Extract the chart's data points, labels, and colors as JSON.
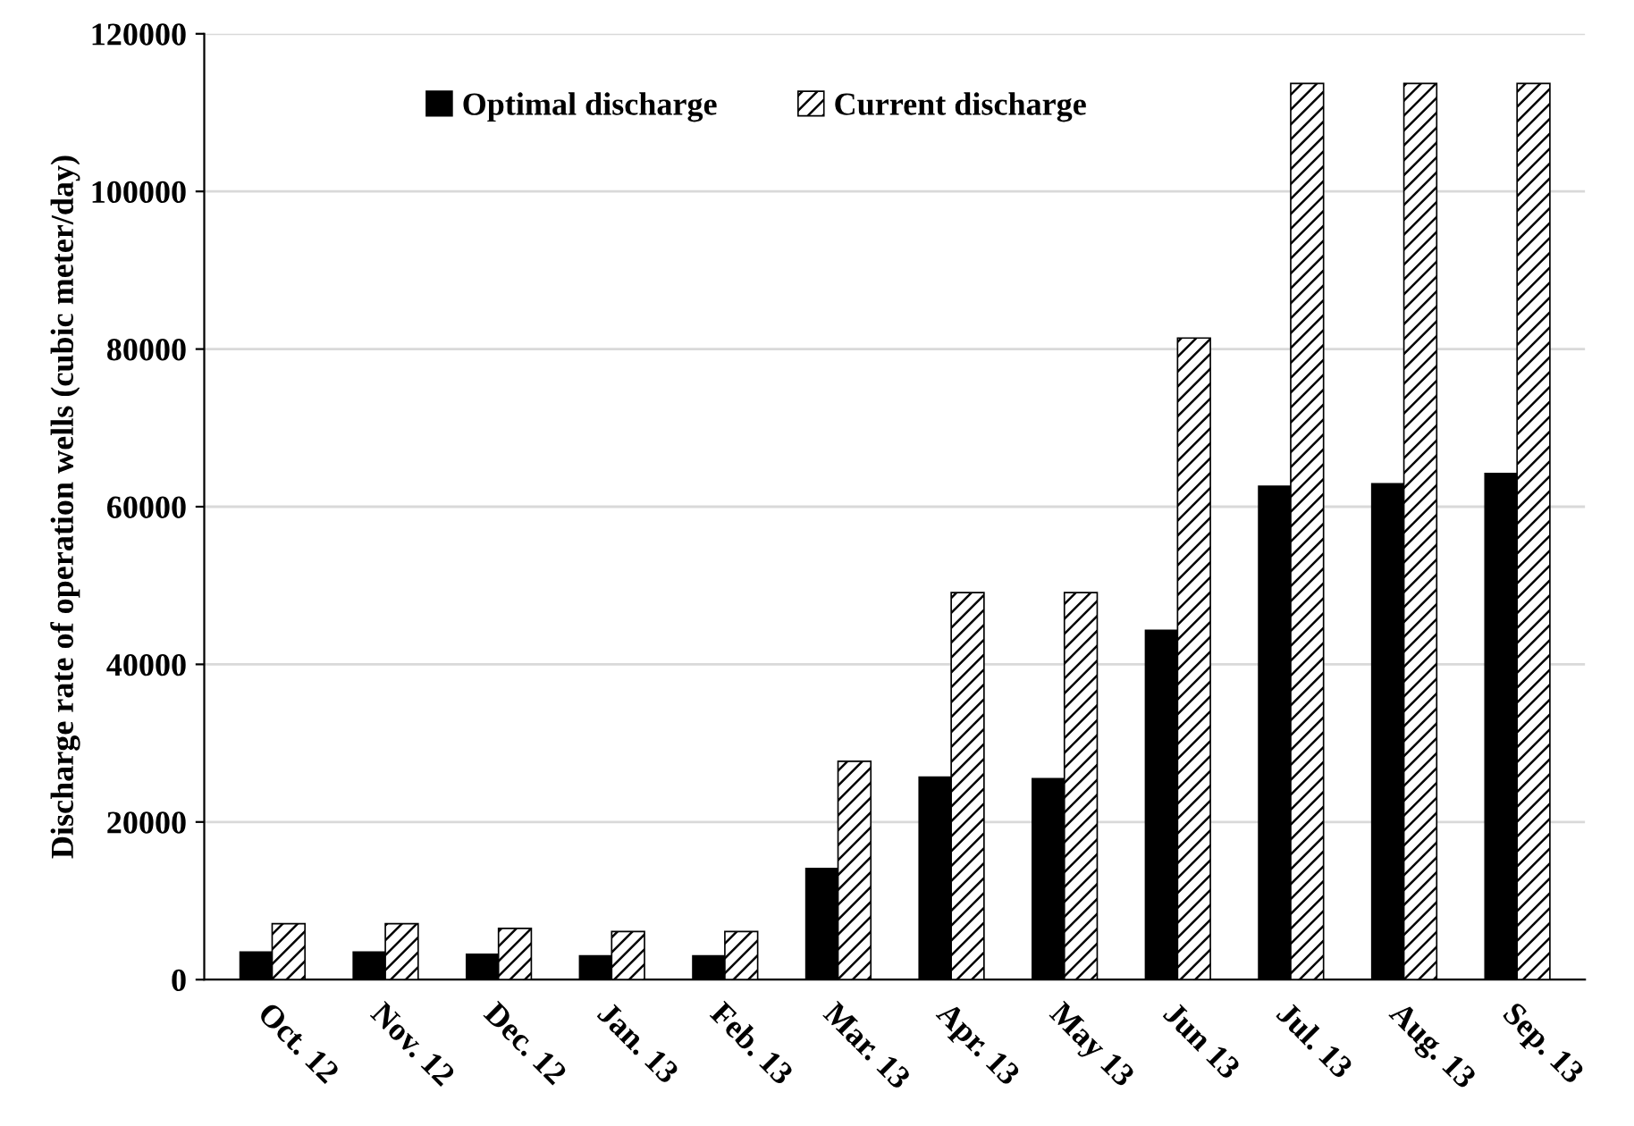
{
  "chart_data": {
    "type": "bar",
    "ylabel": "Discharge rate of operation wells (cubic meter/day)",
    "categories": [
      "Oct. 12",
      "Nov. 12",
      "Dec. 12",
      "Jan. 13",
      "Feb. 13",
      "Mar. 13",
      "Apr. 13",
      "May 13",
      "Jun 13",
      "Jul. 13",
      "Aug. 13",
      "Sep. 13"
    ],
    "series": [
      {
        "name": "Optimal discharge",
        "color": "#000000",
        "values": [
          3600,
          3600,
          3300,
          3100,
          3100,
          14200,
          25800,
          25600,
          44400,
          62700,
          63000,
          64300
        ]
      },
      {
        "name": "Current discharge",
        "color": "#000000",
        "values": [
          7100,
          7100,
          6500,
          6100,
          6100,
          27700,
          49100,
          49100,
          81400,
          113700,
          113700,
          113700
        ]
      }
    ],
    "ylim": [
      0,
      120000
    ],
    "yticks": [
      0,
      20000,
      40000,
      60000,
      80000,
      100000,
      120000
    ],
    "grid": "y",
    "legend": "top"
  }
}
